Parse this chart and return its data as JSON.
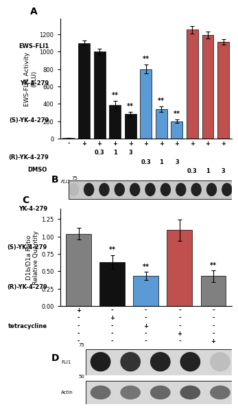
{
  "panel_A": {
    "bar_values": [
      10,
      1100,
      1000,
      390,
      280,
      800,
      340,
      200,
      1250,
      1190,
      1110
    ],
    "bar_errors": [
      0,
      30,
      30,
      40,
      25,
      50,
      30,
      20,
      40,
      40,
      30
    ],
    "bar_colors": [
      "#808080",
      "#111111",
      "#111111",
      "#111111",
      "#111111",
      "#5b9bd5",
      "#5b9bd5",
      "#5b9bd5",
      "#c0504d",
      "#c0504d",
      "#c0504d"
    ],
    "sig_stars": [
      false,
      false,
      false,
      true,
      true,
      true,
      true,
      true,
      false,
      false,
      false
    ],
    "ylabel": "EWS-FLI1 Activity\n(RLU)",
    "ylim": [
      0,
      1380
    ],
    "yticks": [
      0,
      200,
      400,
      600,
      800,
      1000,
      1200
    ],
    "row_labels": [
      "EWS-FLI1",
      "YK-4-279",
      "(S)-YK-4-279",
      "(R)-YK-4-279"
    ],
    "col_signs_row0": [
      "-",
      "+",
      "+",
      "+",
      "+",
      "+",
      "+",
      "+",
      "+",
      "+",
      "+"
    ],
    "col_signs_row1": [
      " ",
      " ",
      "0.3",
      "1",
      "3",
      " ",
      " ",
      " ",
      " ",
      " ",
      " "
    ],
    "col_signs_row2": [
      " ",
      " ",
      " ",
      " ",
      " ",
      "0.3",
      "1",
      "3",
      " ",
      " ",
      " "
    ],
    "col_signs_row3": [
      " ",
      " ",
      " ",
      " ",
      " ",
      " ",
      " ",
      " ",
      "0.3",
      "1",
      "3"
    ]
  },
  "panel_C": {
    "bar_values": [
      1.04,
      0.63,
      0.43,
      1.09,
      0.43
    ],
    "bar_errors": [
      0.08,
      0.1,
      0.06,
      0.15,
      0.08
    ],
    "bar_colors": [
      "#808080",
      "#111111",
      "#5b9bd5",
      "#c0504d",
      "#808080"
    ],
    "sig_stars": [
      false,
      true,
      true,
      false,
      true
    ],
    "ylabel": "D1b/D1a Ratio\nRelative Quantity",
    "ylim": [
      0,
      1.4
    ],
    "yticks": [
      0,
      0.25,
      0.5,
      0.75,
      1.0,
      1.25
    ],
    "row_labels": [
      "DMSO",
      "YK-4-279",
      "(S)-YK-4-279",
      "(R)-YK-4-279",
      "tetracycline"
    ],
    "col_signs": [
      [
        "+",
        "-",
        "-",
        "-",
        "-"
      ],
      [
        "-",
        "+",
        "-",
        "-",
        "-"
      ],
      [
        "-",
        "-",
        "+",
        "-",
        "-"
      ],
      [
        "-",
        "-",
        "-",
        "+",
        "-"
      ],
      [
        "-",
        "-",
        "-",
        "-",
        "+"
      ]
    ]
  },
  "background_color": "#ffffff",
  "star_fontsize": 7,
  "label_fontsize": 6.0,
  "axis_fontsize": 6.5,
  "panel_label_fontsize": 10,
  "tick_fontsize": 6.0
}
